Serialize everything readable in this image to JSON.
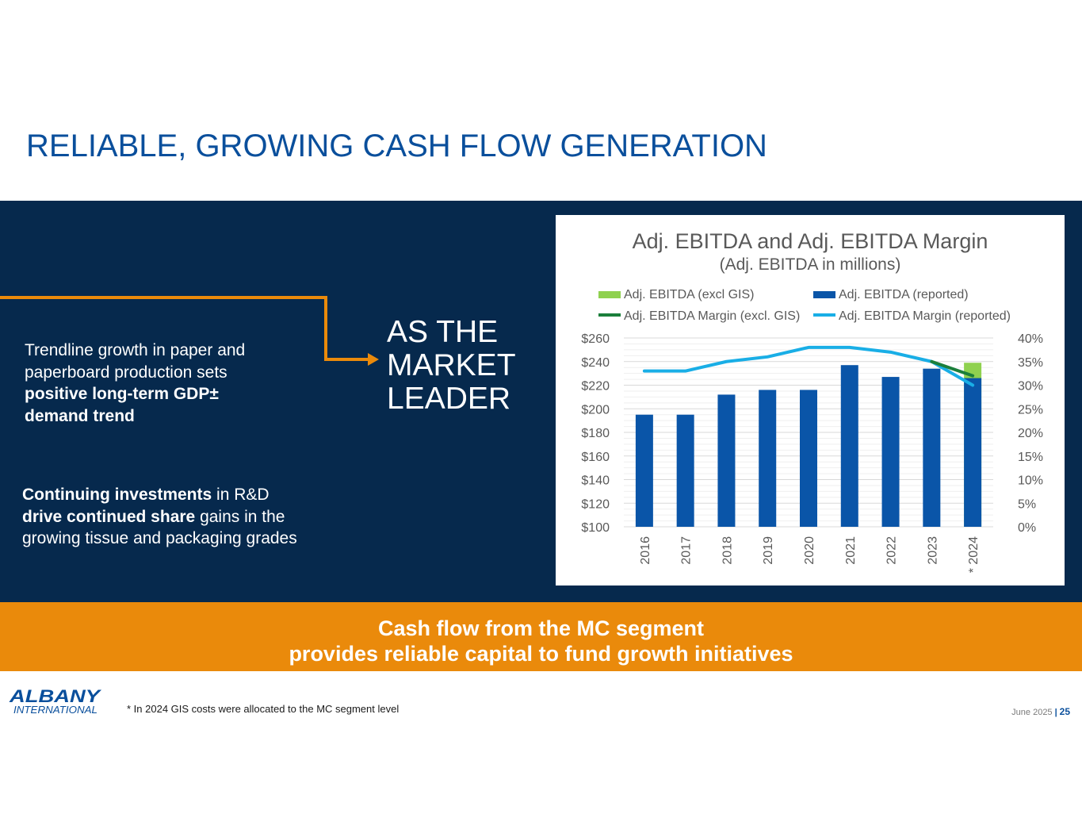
{
  "title": "RELIABLE, GROWING CASH FLOW GENERATION",
  "left_panel": {
    "para1": {
      "normal": "Trendline growth in paper and paperboard production sets ",
      "bold": "positive long-term GDP± demand trend"
    },
    "para2": {
      "bold1": "Continuing investments",
      "normal1": " in R&D ",
      "bold2": "drive continued share",
      "normal2": " gains in the growing tissue and packaging grades"
    }
  },
  "callout": {
    "line1": "AS THE",
    "line2": "MARKET",
    "line3": "LEADER"
  },
  "banner": {
    "line1": "Cash flow from the MC segment",
    "line2": "provides reliable capital to fund growth initiatives"
  },
  "footer": {
    "logo_line1": "ALBANY",
    "logo_line2": "INTERNATIONAL",
    "footnote": "* In 2024 GIS costs were allocated to the MC segment level",
    "date": "June 2025",
    "separator": "|",
    "page": "25"
  },
  "colors": {
    "title_blue": "#0a4f9c",
    "dark_navy": "#06294d",
    "orange": "#ea8a0b",
    "bar_reported": "#0a55a8",
    "bar_excl_gis": "#8fd14f",
    "margin_excl_gis": "#1b7f3b",
    "margin_reported": "#19aee6"
  },
  "chart_data": {
    "type": "bar",
    "title": "Adj. EBITDA and Adj. EBITDA Margin",
    "subtitle": "(Adj. EBITDA in millions)",
    "categories": [
      "2016",
      "2017",
      "2018",
      "2019",
      "2020",
      "2021",
      "2022",
      "2023",
      "* 2024"
    ],
    "series": [
      {
        "name": "Adj. EBITDA (excl GIS)",
        "kind": "bar",
        "axis": "left",
        "values": [
          null,
          null,
          null,
          null,
          null,
          null,
          null,
          null,
          239
        ]
      },
      {
        "name": "Adj. EBITDA (reported)",
        "kind": "bar",
        "axis": "left",
        "values": [
          195,
          195,
          212,
          216,
          216,
          237,
          227,
          234,
          226
        ]
      },
      {
        "name": "Adj. EBITDA Margin (excl. GIS)",
        "kind": "line",
        "axis": "right",
        "values": [
          null,
          null,
          null,
          null,
          null,
          null,
          null,
          35,
          32
        ]
      },
      {
        "name": "Adj. EBITDA Margin (reported)",
        "kind": "line",
        "axis": "right",
        "values": [
          33,
          33,
          35,
          36,
          38,
          38,
          37,
          35,
          30
        ]
      }
    ],
    "left_axis": {
      "min": 100,
      "max": 260,
      "step": 20,
      "labels": [
        "$100",
        "$120",
        "$140",
        "$160",
        "$180",
        "$200",
        "$220",
        "$240",
        "$260"
      ]
    },
    "right_axis": {
      "min": 0,
      "max": 40,
      "step": 5,
      "labels": [
        "0%",
        "5%",
        "10%",
        "15%",
        "20%",
        "25%",
        "30%",
        "35%",
        "40%"
      ]
    },
    "legend_position": "top",
    "grid": true
  }
}
